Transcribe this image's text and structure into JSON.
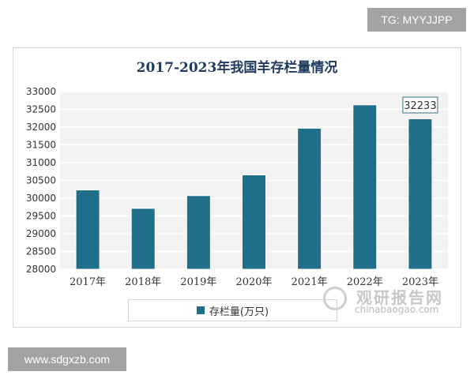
{
  "header": {
    "tg_label": "TG: MYYJJPP"
  },
  "footer": {
    "site_label": "www.sdgxzb.com"
  },
  "watermark": {
    "title": "观研报告网",
    "url": "chinabaogao.com"
  },
  "chart_data": {
    "type": "bar",
    "title": "2017-2023年我国羊存栏量情况",
    "categories": [
      "2017年",
      "2018年",
      "2019年",
      "2020年",
      "2021年",
      "2022年",
      "2023年"
    ],
    "series": [
      {
        "name": "存栏量(万只)",
        "values": [
          30232,
          29713,
          30072,
          30655,
          31969,
          32627,
          32233
        ]
      }
    ],
    "annotations": [
      {
        "category": "2023年",
        "label": "32233"
      }
    ],
    "ylim": [
      28000,
      33000
    ],
    "yticks": [
      28000,
      28500,
      29000,
      29500,
      30000,
      30500,
      31000,
      31500,
      32000,
      32500,
      33000
    ],
    "grid": true,
    "legend": "bottom",
    "colors": {
      "bar": "#1f6f8b",
      "plot_bg": "#f2f2f2",
      "grid": "#ffffff",
      "text": "#333333"
    }
  }
}
